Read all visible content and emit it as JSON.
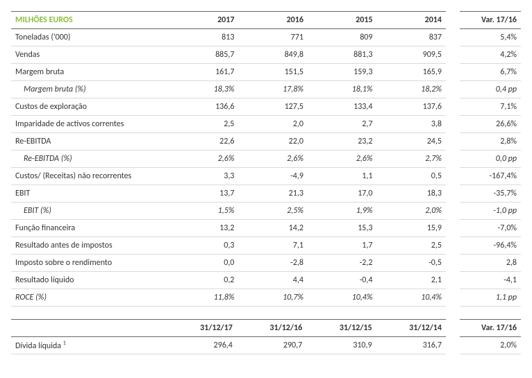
{
  "header_label": "MILHÕES EUROS",
  "years": [
    "2017",
    "2016",
    "2015",
    "2014"
  ],
  "var_header": "Var. 17/16",
  "rows": [
    {
      "label": "Toneladas ('000)",
      "v": [
        "813",
        "771",
        "809",
        "837"
      ],
      "var": "5,4%",
      "italic": false,
      "indent": false
    },
    {
      "label": "Vendas",
      "v": [
        "885,7",
        "849,8",
        "881,3",
        "909,5"
      ],
      "var": "4,2%",
      "italic": false,
      "indent": false
    },
    {
      "label": "Margem bruta",
      "v": [
        "161,7",
        "151,5",
        "159,3",
        "165,9"
      ],
      "var": "6,7%",
      "italic": false,
      "indent": false
    },
    {
      "label": "Margem bruta (%)",
      "v": [
        "18,3%",
        "17,8%",
        "18,1%",
        "18,2%"
      ],
      "var": "0,4 pp",
      "italic": true,
      "indent": true
    },
    {
      "label": "Custos de exploração",
      "v": [
        "136,6",
        "127,5",
        "133,4",
        "137,6"
      ],
      "var": "7,1%",
      "italic": false,
      "indent": false
    },
    {
      "label": "Imparidade de activos correntes",
      "v": [
        "2,5",
        "2,0",
        "2,7",
        "3,8"
      ],
      "var": "26,6%",
      "italic": false,
      "indent": false
    },
    {
      "label": "Re-EBITDA",
      "v": [
        "22,6",
        "22,0",
        "23,2",
        "24,5"
      ],
      "var": "2,8%",
      "italic": false,
      "indent": false
    },
    {
      "label": "Re-EBITDA (%)",
      "v": [
        "2,6%",
        "2,6%",
        "2,6%",
        "2,7%"
      ],
      "var": "0,0 pp",
      "italic": true,
      "indent": true
    },
    {
      "label": "Custos/ (Receitas) não recorrentes",
      "v": [
        "3,3",
        "-4,9",
        "1,1",
        "0,5"
      ],
      "var": "-167,4%",
      "italic": false,
      "indent": false
    },
    {
      "label": "EBIT",
      "v": [
        "13,7",
        "21,3",
        "17,0",
        "18,3"
      ],
      "var": "-35,7%",
      "italic": false,
      "indent": false
    },
    {
      "label": "EBIT (%)",
      "v": [
        "1,5%",
        "2,5%",
        "1,9%",
        "2,0%"
      ],
      "var": "-1,0 pp",
      "italic": true,
      "indent": true
    },
    {
      "label": "Função financeira",
      "v": [
        "13,2",
        "14,2",
        "15,3",
        "15,9"
      ],
      "var": "-7,0%",
      "italic": false,
      "indent": false
    },
    {
      "label": "Resultado antes de impostos",
      "v": [
        "0,3",
        "7,1",
        "1,7",
        "2,5"
      ],
      "var": "-96,4%",
      "italic": false,
      "indent": false
    },
    {
      "label": "Imposto sobre o rendimento",
      "v": [
        "0,0",
        "-2,8",
        "-2,2",
        "-0,5"
      ],
      "var": "2,8",
      "italic": false,
      "indent": false
    },
    {
      "label": "Resultado líquido",
      "v": [
        "0,2",
        "4,4",
        "-0,4",
        "2,1"
      ],
      "var": "-4,1",
      "italic": false,
      "indent": false
    },
    {
      "label": "ROCE (%)",
      "v": [
        "11,8%",
        "10,7%",
        "10,4%",
        "10,4%"
      ],
      "var": "1,1 pp",
      "italic": true,
      "indent": false
    }
  ],
  "dates_header": [
    "31/12/17",
    "31/12/16",
    "31/12/15",
    "31/12/14"
  ],
  "var_header2": "Var. 17/16",
  "rows2": [
    {
      "label": "Dívida líquida",
      "sup": "1",
      "v": [
        "296,4",
        "290,7",
        "310,9",
        "316,7"
      ],
      "var": "2,0%"
    }
  ],
  "colors": {
    "accent": "#8bbf3f",
    "border_strong": "#666666",
    "border_light": "#d9d9d9",
    "text": "#333333"
  }
}
